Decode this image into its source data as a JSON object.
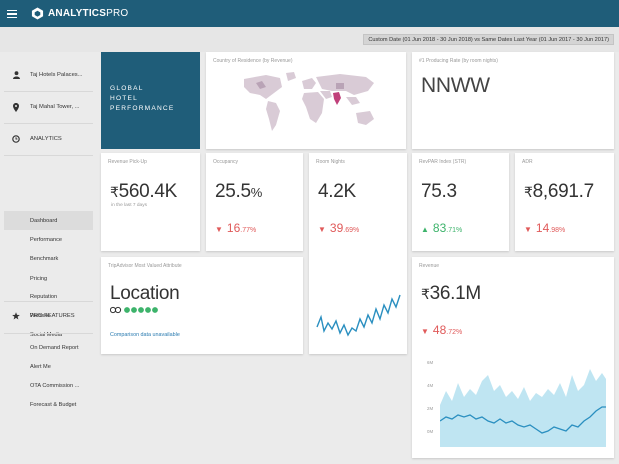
{
  "app": {
    "brand_main": "ANALYTICS",
    "brand_pro": "PRO"
  },
  "datebar": {
    "range_text": "Custom Date (01 Jun 2018 - 30 Jun 2018) vs Same Dates Last Year (01 Jun 2017 - 30 Jun 2017)"
  },
  "sidebar": {
    "hotels": [
      {
        "label": "Taj Hotels Palaces...",
        "icon": "user-icon"
      },
      {
        "label": "Taj Mahal Tower, ...",
        "icon": "location-pin-icon"
      }
    ],
    "analytics": {
      "label": "ANALYTICS",
      "icon": "clock-icon"
    },
    "nav": [
      "Dashboard",
      "Performance",
      "Benchmark",
      "Pricing",
      "Reputation",
      "Website",
      "Social Media"
    ],
    "active": "Dashboard",
    "pro_features": {
      "label": "PRO FEATURES",
      "icon": "star-icon"
    },
    "pro_items": [
      "On Demand Report",
      "Alert Me",
      "OTA Commission ...",
      "Forecast & Budget"
    ]
  },
  "global": {
    "line1": "GLOBAL",
    "line2": "HOTEL",
    "line3": "PERFORMANCE"
  },
  "country_card": {
    "label": "Country of Residence (by Revenue)"
  },
  "producing_card": {
    "label": "#1 Producing Rate (by room nights)",
    "value": "NNWW"
  },
  "revenue_pickup": {
    "label": "Revenue Pick-Up",
    "currency": "₹",
    "value": "560.4K",
    "sub": "in the last 7 days"
  },
  "occupancy": {
    "label": "Occupancy",
    "value": "25.5",
    "unit": "%",
    "change_int": "16",
    "change_dec": ".77%",
    "direction": "down"
  },
  "room_nights": {
    "label": "Room Nights",
    "value": "4.2K",
    "change_int": "39",
    "change_dec": ".69%",
    "direction": "down"
  },
  "revpar": {
    "label": "RevPAR Index (STR)",
    "value": "75.3",
    "change_int": "83",
    "change_dec": ".71%",
    "direction": "up"
  },
  "adr": {
    "label": "ADR",
    "currency": "₹",
    "value": "8,691.7",
    "change_int": "14",
    "change_dec": ".98%",
    "direction": "down"
  },
  "tripadvisor": {
    "label": "TripAdvisor Most Valued Attribute",
    "value": "Location",
    "note": "Comparison data unavailable"
  },
  "revenue": {
    "label": "Revenue",
    "currency": "₹",
    "value": "36.1M",
    "change_int": "48",
    "change_dec": ".72%",
    "direction": "down",
    "y_ticks": [
      "6M",
      "4M",
      "2M",
      "0M"
    ]
  },
  "colors": {
    "brand": "#1f5d79",
    "up": "#3db36b",
    "down": "#e05a5a",
    "chart_line": "#2a8fc0",
    "chart_area": "#bfe5f2",
    "map_highlight": "#c0407a",
    "map_land": "#d9cbd6"
  }
}
